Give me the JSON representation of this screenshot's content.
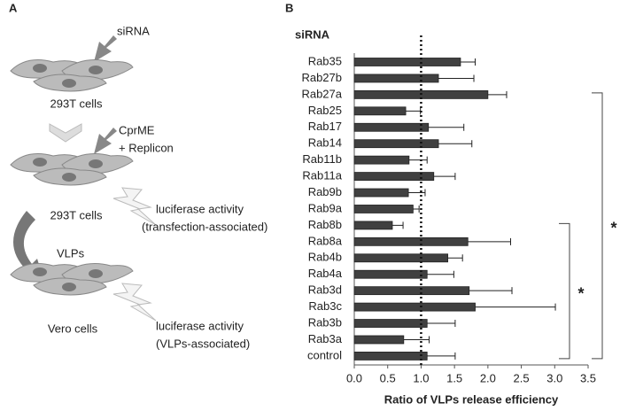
{
  "diagram": {
    "panel_label": "A",
    "sirna": "siRNA",
    "cells_1": "293T cells",
    "cprme": "CprME",
    "replicon": "+ Replicon",
    "cells_2": "293T cells",
    "luciferase_1": "luciferase activity",
    "luciferase_1_note": "(transfection-associated)",
    "vlps": "VLPs",
    "cells_3": "Vero cells",
    "luciferase_2": "luciferase activity",
    "luciferase_2_note": "(VLPs-associated)"
  },
  "chart_data": {
    "type": "hbar",
    "panel_label": "B",
    "category_header": "siRNA",
    "x_label": "Ratio of VLPs release efficiency",
    "categories": [
      "Rab35",
      "Rab27b",
      "Rab27a",
      "Rab25",
      "Rab17",
      "Rab14",
      "Rab11b",
      "Rab11a",
      "Rab9b",
      "Rab9a",
      "Rab8b",
      "Rab8a",
      "Rab4b",
      "Rab4a",
      "Rab3d",
      "Rab3c",
      "Rab3b",
      "Rab3a",
      "control"
    ],
    "series": [
      {
        "color": "#404040",
        "values": [
          1.59,
          1.26,
          2.0,
          0.77,
          1.11,
          1.26,
          0.82,
          1.19,
          0.81,
          0.88,
          0.57,
          1.7,
          1.4,
          1.09,
          1.72,
          1.81,
          1.09,
          0.74,
          1.09
        ],
        "errors": [
          0.22,
          0.53,
          0.28,
          0.22,
          0.53,
          0.5,
          0.27,
          0.32,
          0.25,
          0.09,
          0.16,
          0.64,
          0.22,
          0.4,
          0.64,
          1.2,
          0.42,
          0.38,
          0.42
        ]
      }
    ],
    "xlim": [
      0,
      3.5
    ],
    "xticks": [
      {
        "value": 0,
        "label": "0.0"
      },
      0.5,
      {
        "value": 1,
        "label": "1.0"
      },
      1.5,
      {
        "value": 2,
        "label": "2.0"
      },
      2.5,
      {
        "value": 3,
        "label": "3.0"
      },
      3.5
    ],
    "reference_line": 1,
    "brackets": [
      {
        "label": "*",
        "from": "Rab27a",
        "to": "control"
      },
      {
        "label": "*",
        "from": "Rab8b",
        "to": "control"
      }
    ]
  }
}
